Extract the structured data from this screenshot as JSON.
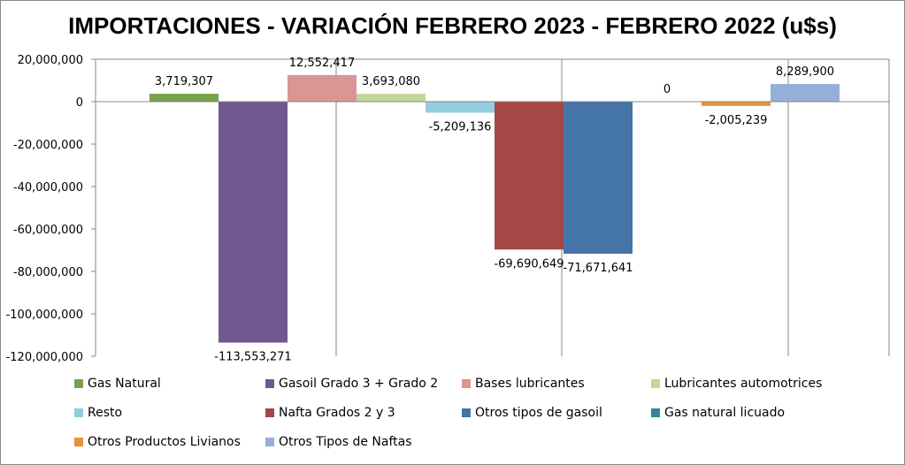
{
  "chart_data": {
    "type": "bar",
    "title": "IMPORTACIONES - VARIACIÓN FEBRERO 2023 - FEBRERO 2022 (u$s)",
    "ylim": [
      -120000000,
      20000000
    ],
    "ytick_values": [
      20000000,
      0,
      -20000000,
      -40000000,
      -60000000,
      -80000000,
      -100000000,
      -120000000
    ],
    "ytick_labels": [
      "20,000,000",
      "0",
      "-20,000,000",
      "-40,000,000",
      "-60,000,000",
      "-80,000,000",
      "-100,000,000",
      "-120,000,000"
    ],
    "grid": "vertical lines at category boundaries",
    "legend_position": "bottom",
    "series": [
      {
        "name": "Gas Natural",
        "value": 3719307,
        "label": "3,719,307",
        "color": "#77a14b"
      },
      {
        "name": "Gasoil Grado 3 + Grado 2",
        "value": -113553271,
        "label": "-113,553,271",
        "color": "#735791"
      },
      {
        "name": "Bases lubricantes",
        "value": 12552417,
        "label": "12,552,417",
        "color": "#d99694"
      },
      {
        "name": "Lubricantes automotrices",
        "value": 3693080,
        "label": "3,693,080",
        "color": "#c3d69b"
      },
      {
        "name": "Resto",
        "value": -5209136,
        "label": "-5,209,136",
        "color": "#93cddd"
      },
      {
        "name": "Nafta Grados 2 y 3",
        "value": -69690649,
        "label": "-69,690,649",
        "color": "#a54745"
      },
      {
        "name": "Otros tipos de gasoil",
        "value": -71671641,
        "label": "-71,671,641",
        "color": "#4574a9"
      },
      {
        "name": "Gas natural licuado",
        "value": 0,
        "label": "0",
        "color": "#31859c"
      },
      {
        "name": "Otros Productos Livianos",
        "value": -2005239,
        "label": "-2,005,239",
        "color": "#e8913a"
      },
      {
        "name": "Otros Tipos de Naftas",
        "value": 8289900,
        "label": "8,289,900",
        "color": "#95afd8"
      }
    ]
  }
}
